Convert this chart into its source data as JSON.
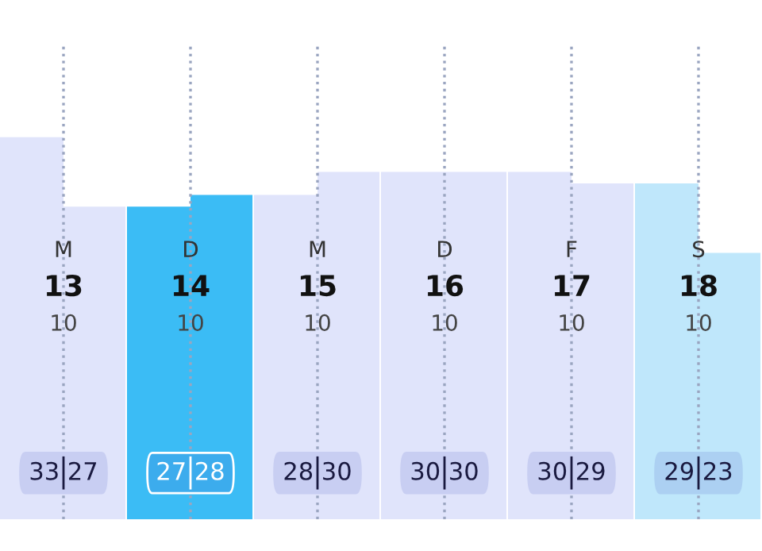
{
  "chart_data": {
    "type": "bar",
    "categories": [
      "M",
      "D",
      "M",
      "D",
      "F",
      "S"
    ],
    "series": [
      {
        "colors": [
          "#e0e4fb",
          "#3bbcf5",
          "#e0e4fb",
          "#e0e4fb",
          "#e0e4fb",
          "#bfe7fb"
        ],
        "values": [
          33,
          27,
          28,
          30,
          30,
          29
        ],
        "value_labels": [
          "33",
          "27",
          "28",
          "30",
          "30",
          "29"
        ]
      },
      {
        "colors": [
          "#e0e4fb",
          "#3bbcf5",
          "#e0e4fb",
          "#e0e4fb",
          "#e0e4fb",
          "#bfe7fb"
        ],
        "values": [
          27,
          28,
          30,
          30,
          29,
          23
        ],
        "value_labels": [
          "27",
          "28",
          "30",
          "30",
          "29",
          "23"
        ]
      }
    ],
    "annotations": [
      "13",
      "10",
      "14",
      "10",
      "15",
      "10",
      "16",
      "10",
      "17",
      "10",
      "18",
      "10"
    ],
    "ylim": [
      0,
      41
    ],
    "tick_labels": false,
    "grid": "x",
    "line_style": "dotted"
  }
}
